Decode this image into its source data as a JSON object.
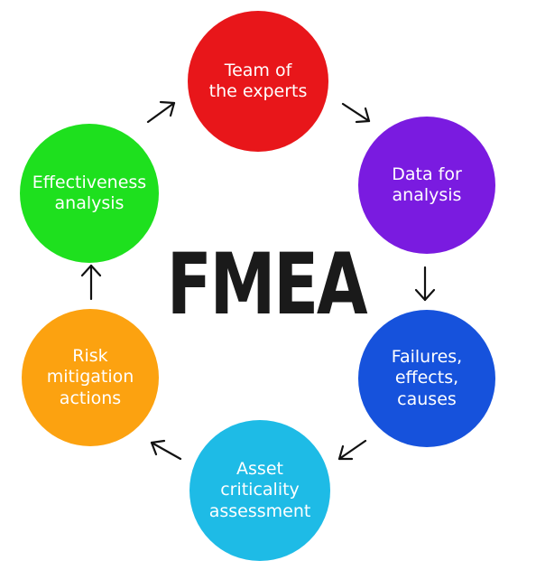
{
  "title": "FMEA",
  "nodes": {
    "team": {
      "label": "Team of\nthe experts",
      "color": "#e8161a"
    },
    "data": {
      "label": "Data for\nanalysis",
      "color": "#7a1be0"
    },
    "failures": {
      "label": "Failures,\neffects,\ncauses",
      "color": "#1652dc"
    },
    "asset": {
      "label": "Asset\ncriticality\nassessment",
      "color": "#1ebbe6"
    },
    "risk": {
      "label": "Risk\nmitigation\nactions",
      "color": "#fca210"
    },
    "effectiveness": {
      "label": "Effectiveness\nanalysis",
      "color": "#1ee01e"
    }
  }
}
